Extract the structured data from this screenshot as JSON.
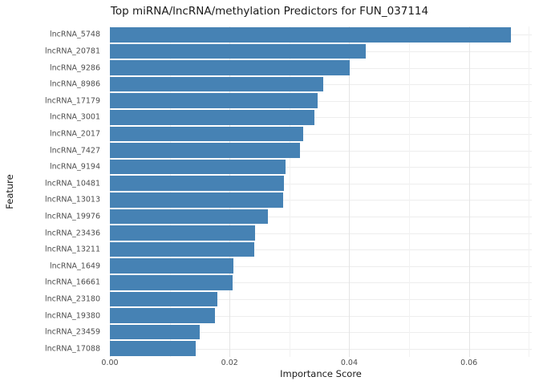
{
  "chart_data": {
    "type": "bar",
    "orientation": "horizontal",
    "title": "Top miRNA/lncRNA/methylation Predictors for FUN_037114",
    "xlabel": "Importance Score",
    "ylabel": "Feature",
    "categories": [
      "lncRNA_5748",
      "lncRNA_20781",
      "lncRNA_9286",
      "lncRNA_8986",
      "lncRNA_17179",
      "lncRNA_3001",
      "lncRNA_2017",
      "lncRNA_7427",
      "lncRNA_9194",
      "lncRNA_10481",
      "lncRNA_13013",
      "lncRNA_19976",
      "lncRNA_23436",
      "lncRNA_13211",
      "lncRNA_1649",
      "lncRNA_16661",
      "lncRNA_23180",
      "lncRNA_19380",
      "lncRNA_23459",
      "lncRNA_17088"
    ],
    "values": [
      0.067,
      0.0427,
      0.0401,
      0.0356,
      0.0347,
      0.0342,
      0.0323,
      0.0318,
      0.0293,
      0.0291,
      0.029,
      0.0264,
      0.0243,
      0.0241,
      0.0206,
      0.0205,
      0.0179,
      0.0176,
      0.015,
      0.0144
    ],
    "xlim": [
      0,
      0.0705
    ],
    "xticks": [
      0.0,
      0.02,
      0.04,
      0.06
    ],
    "xtick_labels": [
      "0.00",
      "0.02",
      "0.04",
      "0.06"
    ],
    "minor_xticks": [
      0.01,
      0.03,
      0.05,
      0.07
    ],
    "grid": true,
    "legend_position": "none",
    "bar_color": "#4682B4",
    "grid_major_color": "#e4e4e4",
    "grid_minor_color": "#f2f2f2",
    "background_color": "#ffffff"
  }
}
